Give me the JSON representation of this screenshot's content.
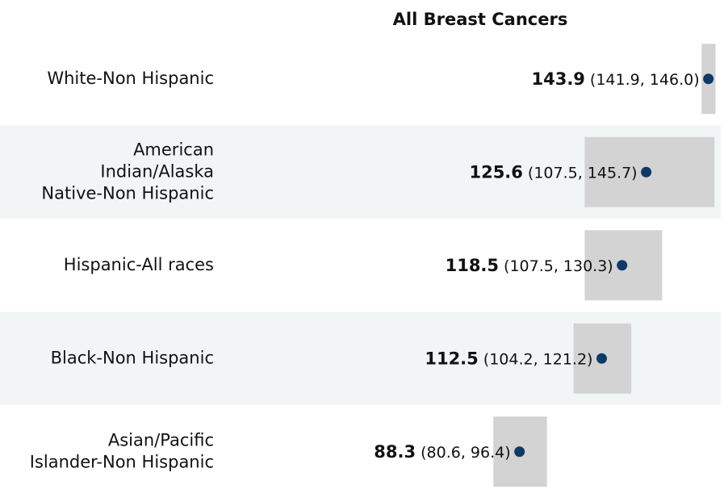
{
  "chart_data": {
    "type": "dot_ci",
    "title": "All Breast Cancers",
    "categories": [
      [
        "White-Non Hispanic"
      ],
      [
        "American",
        "Indian/Alaska",
        "Native-Non Hispanic"
      ],
      [
        "Hispanic-All races"
      ],
      [
        "Black-Non Hispanic"
      ],
      [
        "Asian/Pacific",
        "Islander-Non Hispanic"
      ]
    ],
    "values": [
      143.9,
      125.6,
      118.5,
      112.5,
      88.3
    ],
    "lower": [
      141.9,
      107.5,
      107.5,
      104.2,
      80.6
    ],
    "upper": [
      146.0,
      145.7,
      130.3,
      121.2,
      96.4
    ],
    "ci_labels": [
      "(141.9, 146.0)",
      "(107.5, 145.7)",
      "(107.5, 130.3)",
      "(104.2, 121.2)",
      "(80.6, 96.4)"
    ],
    "xlim": [
      0,
      148.5
    ],
    "dot_color": "#0d3a66",
    "ci_color": "#d3d3d3",
    "band_color": "#f2f5f6"
  }
}
